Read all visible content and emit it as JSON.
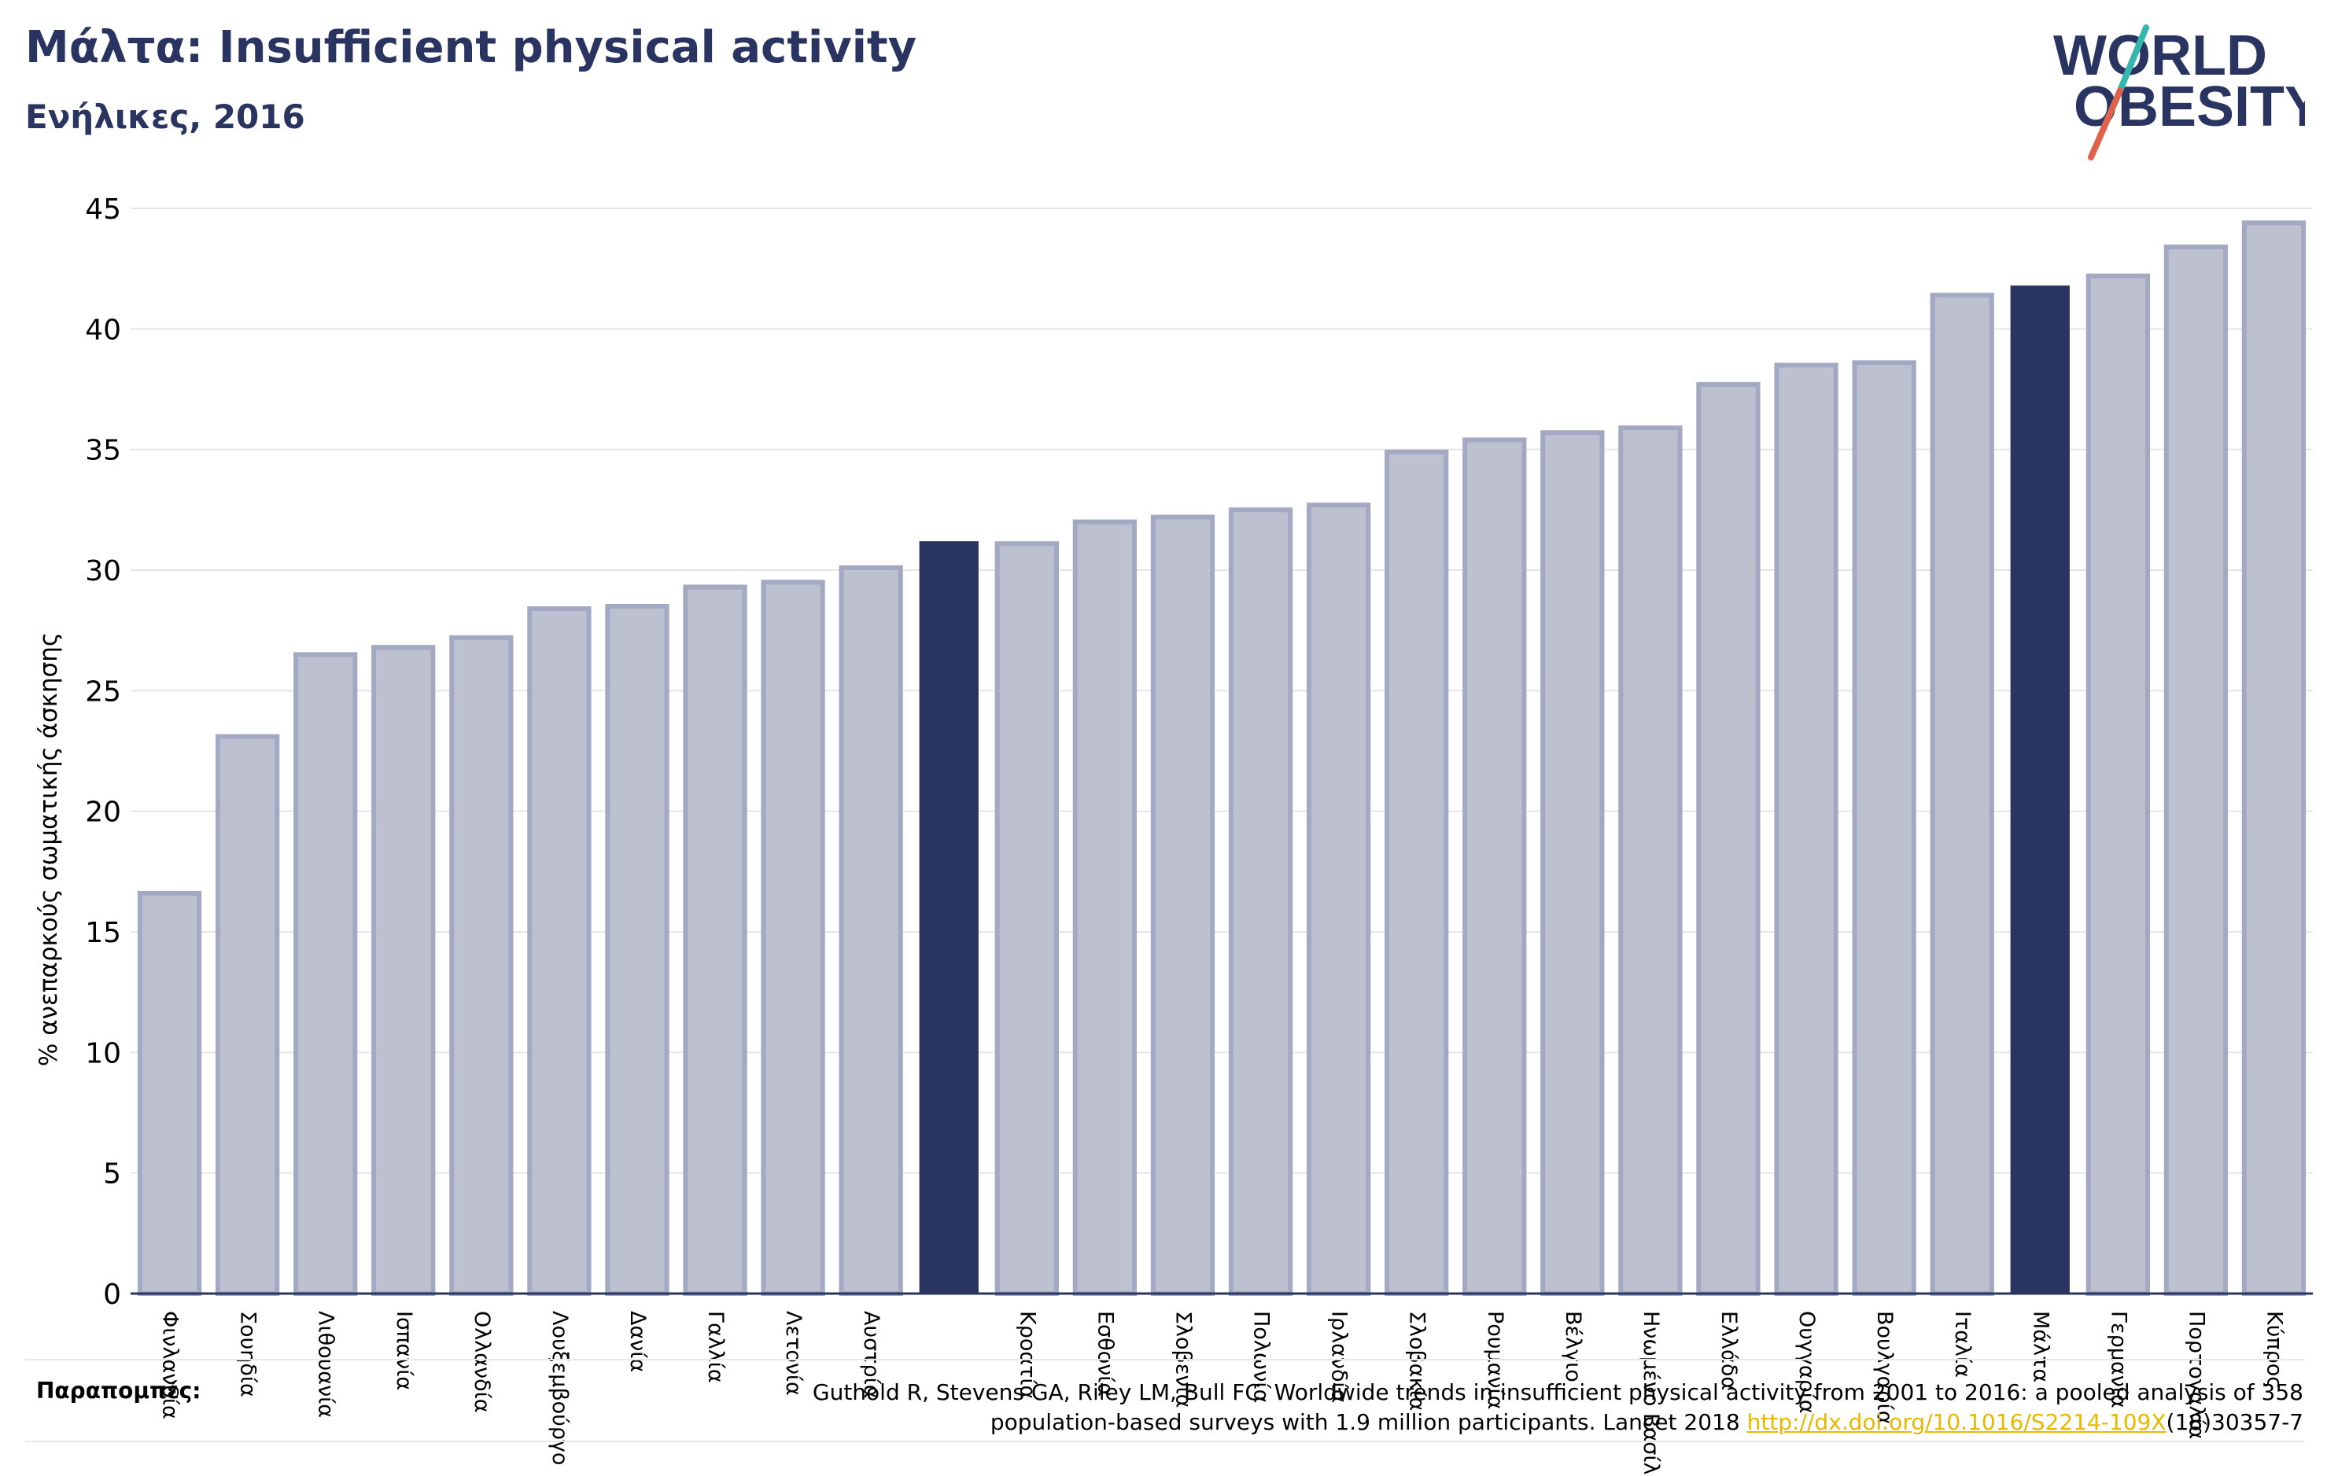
{
  "header": {
    "title": "Μάλτα: Insufficient physical activity",
    "subtitle": "Ενήλικες, 2016"
  },
  "logo": {
    "line1": "WORLD",
    "line2": "OBESITY"
  },
  "footer": {
    "notes_label": "Παραπομπές:",
    "citation_line1": "Guthold R, Stevens GA, Riley LM, Bull FC. Worldwide trends in insufficient physical activity from 2001 to 2016: a pooled analysis of 358",
    "citation_line2_pre": "population-based surveys with 1.9 million participants. Lancet 2018 ",
    "citation_link": "http://dx.doi.org/10.1016/S2214-109X",
    "citation_line2_post": "(18)30357-7"
  },
  "colors": {
    "bar_fill": "#bcc0cf",
    "bar_stroke": "#a3a9c2",
    "highlight": "#2a3461",
    "grid": "#e6e6e6",
    "axis": "#2a3461",
    "logo_text": "#2a3461",
    "logo_teal": "#35b7b0",
    "logo_red": "#e0624c"
  },
  "chart_data": {
    "type": "bar",
    "ylabel": "% ανεπαρκούς σωματικής άσκησης",
    "xlabel": "",
    "ylim": [
      0,
      45
    ],
    "yticks": [
      0,
      5,
      10,
      15,
      20,
      25,
      30,
      35,
      40,
      45
    ],
    "grid": true,
    "categories": [
      "Φινλανδία",
      "Σουηδία",
      "Λιθουανία",
      "Ισπανία",
      "Ολλανδία",
      "Λουξεμβούργο",
      "Δανία",
      "Γαλλία",
      "Λετονία",
      "Αυστρία",
      "",
      "Κροατία",
      "Εσθονία",
      "Σλοβενία",
      "Πολωνία",
      "Ιρλανδία",
      "Σλοβακία",
      "Ρουμανία",
      "Βέλγιο",
      "Ηνωμένο Βασίλειο",
      "Ελλάδα",
      "Ουγγαρία",
      "Βουλγαρία",
      "Ιταλία",
      "Μάλτα",
      "Γερμανία",
      "Πορτογαλία",
      "Κύπρος"
    ],
    "values": [
      16.6,
      23.1,
      26.5,
      26.8,
      27.2,
      28.4,
      28.5,
      29.3,
      29.5,
      30.1,
      31.2,
      31.1,
      32.0,
      32.2,
      32.5,
      32.7,
      34.9,
      35.4,
      35.7,
      35.9,
      37.7,
      38.5,
      38.6,
      41.4,
      41.8,
      42.2,
      43.4,
      44.4
    ],
    "highlighted": [
      10,
      24
    ]
  }
}
